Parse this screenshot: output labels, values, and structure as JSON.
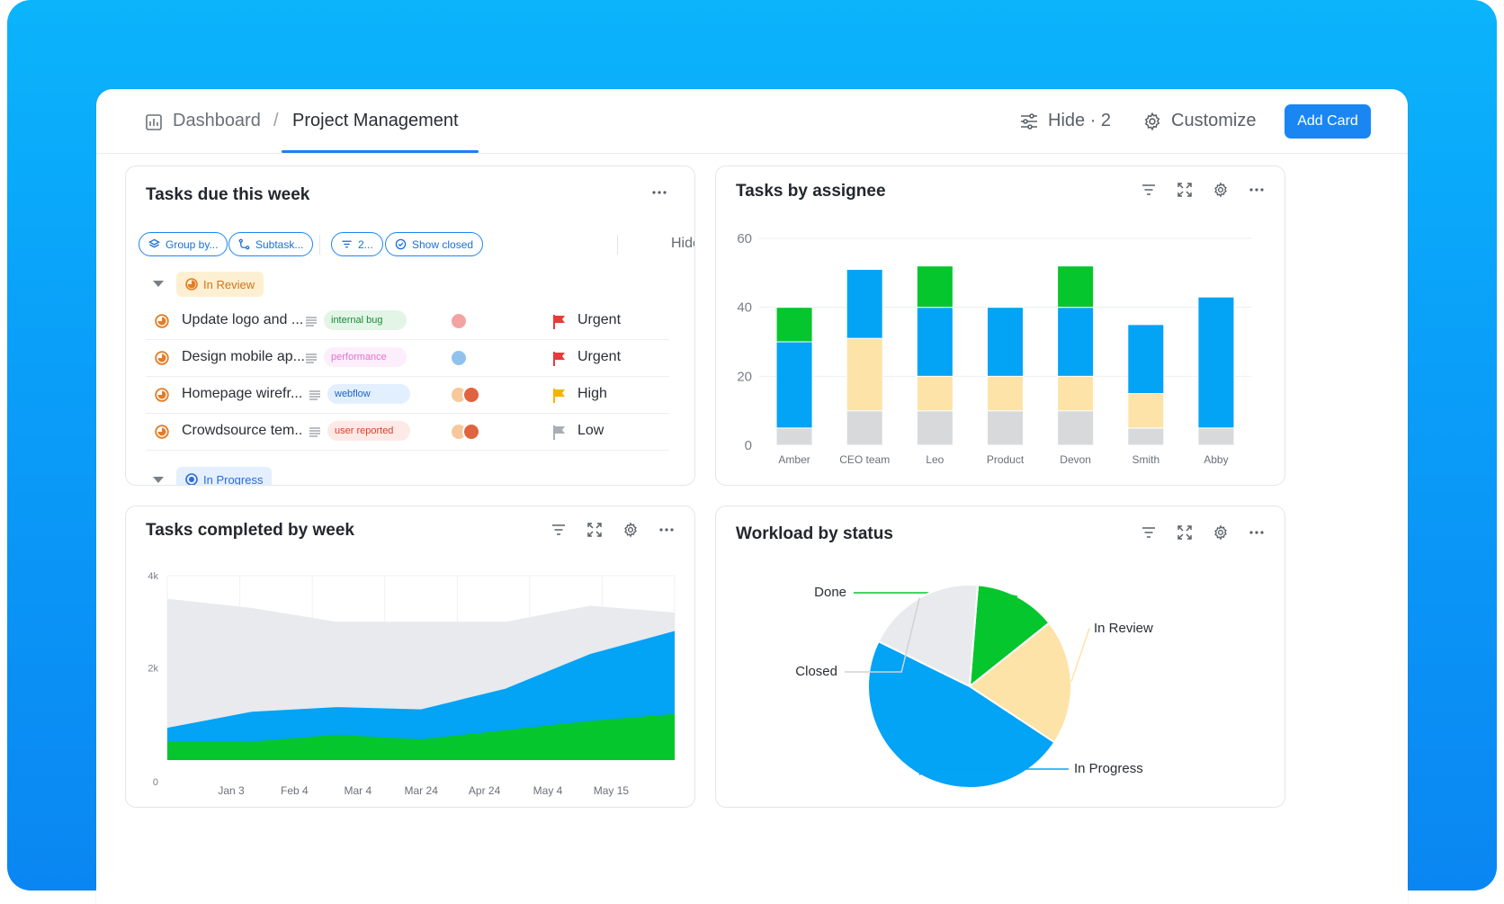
{
  "breadcrumb": {
    "root": "Dashboard",
    "separator": "/",
    "current": "Project Management"
  },
  "header": {
    "hide_label": "Hide · 2",
    "customize_label": "Customize",
    "add_card_label": "Add Card"
  },
  "tasks_card": {
    "title": "Tasks due this week",
    "filters": {
      "group_by": "Group by...",
      "subtasks": "Subtask...",
      "filter_count": "2...",
      "show_closed": "Show closed"
    },
    "hide_label": "Hide",
    "groups": [
      {
        "name": "In Review",
        "tasks": [
          {
            "name": "Update logo and ...",
            "tag": "internal bug",
            "priority": "Urgent"
          },
          {
            "name": "Design mobile ap...",
            "tag": "performance",
            "priority": "Urgent"
          },
          {
            "name": "Homepage wirefr...",
            "tag": "webflow",
            "priority": "High"
          },
          {
            "name": "Crowdsource tem..",
            "tag": "user reported",
            "priority": "Low"
          }
        ]
      },
      {
        "name": "In Progress",
        "tasks": []
      }
    ],
    "colors": {
      "urgent": "#e83a3a",
      "high": "#f5b400",
      "low": "#a9aeb6",
      "review": "#e57c25"
    }
  },
  "assignee_card": {
    "title": "Tasks by assignee"
  },
  "weekly_card": {
    "title": "Tasks completed by week"
  },
  "workload_card": {
    "title": "Workload by status"
  },
  "chart_data": [
    {
      "type": "bar",
      "title": "Tasks by assignee",
      "stacked": true,
      "categories": [
        "Amber",
        "CEO team",
        "Leo",
        "Product",
        "Devon",
        "Smith",
        "Abby"
      ],
      "series": [
        {
          "values": [
            5,
            10,
            10,
            10,
            10,
            5,
            5
          ],
          "color": "#d8d9db"
        },
        {
          "values": [
            0,
            21,
            10,
            10,
            10,
            10,
            0
          ],
          "color": "#fde3a7"
        },
        {
          "values": [
            25,
            20,
            20,
            20,
            20,
            20,
            38
          ],
          "color": "#03a3f6"
        },
        {
          "values": [
            10,
            0,
            12,
            0,
            12,
            0,
            0
          ],
          "color": "#05c62d"
        }
      ],
      "ylim": [
        0,
        60
      ],
      "yticks": [
        0,
        20,
        40,
        60
      ],
      "grid": true
    },
    {
      "type": "area",
      "title": "Tasks completed by week",
      "x": [
        "Jan 3",
        "Feb 4",
        "Mar 4",
        "Mar 24",
        "Apr 24",
        "May 4",
        "May 15"
      ],
      "series": [
        {
          "values": [
            3500,
            3300,
            3000,
            3000,
            3000,
            3350,
            3200
          ],
          "color": "#e8eaed"
        },
        {
          "values": [
            700,
            1050,
            1150,
            1100,
            1550,
            2300,
            2800
          ],
          "color": "#03a3f6"
        },
        {
          "values": [
            400,
            400,
            550,
            450,
            650,
            850,
            1000
          ],
          "color": "#05c62d"
        }
      ],
      "ylim": [
        0,
        4000
      ],
      "yticks": [
        "0",
        "2k",
        "4k"
      ],
      "grid": true
    },
    {
      "type": "pie",
      "title": "Workload by status",
      "slices": [
        {
          "label": "Done",
          "value": 13,
          "color": "#05c62d"
        },
        {
          "label": "In Review",
          "value": 20,
          "color": "#fde3a7"
        },
        {
          "label": "In Progress",
          "value": 48,
          "color": "#03a3f6"
        },
        {
          "label": "Closed",
          "value": 19,
          "color": "#e8eaed"
        }
      ]
    }
  ]
}
